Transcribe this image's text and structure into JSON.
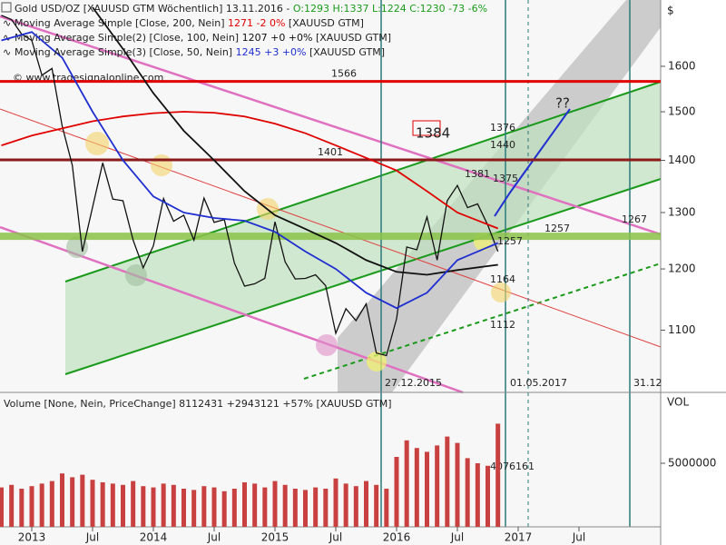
{
  "chart_data": [
    {
      "type": "line",
      "title": "Gold USD/OZ [XAUUSD GTM Wöchentlich] 13.11.2016 -",
      "ohlc": "O:1293 H:1337 L:1224 C:1230 -73 -6%",
      "watermark": "© www.tradesignalonline.com",
      "axis_unit": "$",
      "log_scale": true,
      "ylim": [
        1007,
        1758
      ],
      "yticks": [
        1100,
        1200,
        1300,
        1400,
        1500,
        1600
      ],
      "series": [
        {
          "name": "Gold USD/OZ",
          "color": "#111111",
          "x": [
            "2012-10",
            "2012-11",
            "2012-12",
            "2013-01",
            "2013-02",
            "2013-03",
            "2013-04",
            "2013-05",
            "2013-06",
            "2013-07",
            "2013-08",
            "2013-09",
            "2013-10",
            "2013-11",
            "2013-12",
            "2014-01",
            "2014-02",
            "2014-03",
            "2014-04",
            "2014-05",
            "2014-06",
            "2014-07",
            "2014-08",
            "2014-09",
            "2014-10",
            "2014-11",
            "2014-12",
            "2015-01",
            "2015-02",
            "2015-03",
            "2015-04",
            "2015-05",
            "2015-06",
            "2015-07",
            "2015-08",
            "2015-09",
            "2015-10",
            "2015-11",
            "2015-12",
            "2016-01",
            "2016-02",
            "2016-03",
            "2016-04",
            "2016-05",
            "2016-06",
            "2016-07",
            "2016-08",
            "2016-09",
            "2016-10",
            "2016-11"
          ],
          "values": [
            1720,
            1710,
            1675,
            1660,
            1580,
            1595,
            1470,
            1390,
            1230,
            1310,
            1395,
            1325,
            1322,
            1250,
            1202,
            1240,
            1326,
            1284,
            1295,
            1250,
            1327,
            1282,
            1287,
            1210,
            1171,
            1175,
            1184,
            1283,
            1212,
            1183,
            1184,
            1190,
            1172,
            1095,
            1134,
            1115,
            1142,
            1065,
            1061,
            1118,
            1238,
            1233,
            1292,
            1215,
            1322,
            1351,
            1309,
            1316,
            1277,
            1230
          ]
        },
        {
          "name": "Moving Average Simple [Close, 200, Nein]",
          "legend_value": "1271 -2 0%",
          "legend_suffix": "[XAUUSD GTM]",
          "color": "#e00000",
          "x": [
            "2012-10",
            "2013-01",
            "2013-04",
            "2013-07",
            "2013-10",
            "2014-01",
            "2014-04",
            "2014-07",
            "2014-10",
            "2015-01",
            "2015-04",
            "2015-07",
            "2015-10",
            "2016-01",
            "2016-04",
            "2016-07",
            "2016-11"
          ],
          "values": [
            1430,
            1450,
            1465,
            1480,
            1490,
            1497,
            1500,
            1498,
            1490,
            1475,
            1455,
            1430,
            1405,
            1380,
            1340,
            1300,
            1271
          ]
        },
        {
          "name": "Moving Average Simple(2) [Close, 100, Nein]",
          "legend_value": "1207 +0 +0%",
          "legend_suffix": "[XAUUSD GTM]",
          "color": "#111111",
          "x": [
            "2013-07",
            "2013-10",
            "2014-01",
            "2014-04",
            "2014-07",
            "2014-10",
            "2015-01",
            "2015-04",
            "2015-07",
            "2015-10",
            "2016-01",
            "2016-04",
            "2016-07",
            "2016-11"
          ],
          "values": [
            1740,
            1640,
            1540,
            1460,
            1400,
            1340,
            1295,
            1270,
            1245,
            1215,
            1195,
            1190,
            1198,
            1207
          ]
        },
        {
          "name": "Moving Average Simple(3) [Close, 50, Nein]",
          "legend_value": "1245 +3 +0%",
          "legend_suffix": "[XAUUSD GTM]",
          "color": "#1f2fd0",
          "x": [
            "2012-10",
            "2013-01",
            "2013-04",
            "2013-07",
            "2013-10",
            "2014-01",
            "2014-04",
            "2014-07",
            "2014-10",
            "2015-01",
            "2015-04",
            "2015-07",
            "2015-10",
            "2016-01",
            "2016-04",
            "2016-07",
            "2016-11"
          ],
          "values": [
            1660,
            1680,
            1620,
            1500,
            1400,
            1330,
            1300,
            1290,
            1285,
            1265,
            1230,
            1200,
            1160,
            1135,
            1160,
            1215,
            1245
          ]
        }
      ],
      "levels": [
        {
          "value": 1566,
          "color": "#e00000"
        },
        {
          "value": 1401,
          "color": "#8b1a1a"
        },
        {
          "value": 1257,
          "color": "#8bc34a"
        }
      ],
      "annotations": [
        {
          "text": "1384",
          "color": "#111111"
        },
        {
          "text": "1440",
          "color": "#2a9a2a"
        },
        {
          "text": "1376",
          "color": "#aaaaaa"
        },
        {
          "text": "1381",
          "color": "#e06060"
        },
        {
          "text": "1375",
          "color": "#e00000"
        },
        {
          "text": "1257",
          "color": "#2a9a2a"
        },
        {
          "text": "1164",
          "color": "#e00000"
        },
        {
          "text": "1112",
          "color": "#2a9a2a"
        },
        {
          "text": "1267",
          "color": "#e080c0"
        },
        {
          "text": "??",
          "color": "#1f2fd0"
        },
        {
          "text": "27.12.2015",
          "color": "#2a7a7a"
        },
        {
          "text": "01.05.2017",
          "color": "#2a7a7a"
        },
        {
          "text": "31.12",
          "color": "#2a7a7a"
        }
      ]
    },
    {
      "type": "bar",
      "title": "Volume [None, Nein, PriceChange] 8112431 +2943121 +57% [XAUUSD GTM]",
      "axis_unit": "VOL",
      "color": "#c84040",
      "trend_label": "4076161",
      "ylim": [
        0,
        10000000
      ],
      "yticks": [
        5000000
      ],
      "x": [
        "2012-10",
        "2012-11",
        "2012-12",
        "2013-01",
        "2013-02",
        "2013-03",
        "2013-04",
        "2013-05",
        "2013-06",
        "2013-07",
        "2013-08",
        "2013-09",
        "2013-10",
        "2013-11",
        "2013-12",
        "2014-01",
        "2014-02",
        "2014-03",
        "2014-04",
        "2014-05",
        "2014-06",
        "2014-07",
        "2014-08",
        "2014-09",
        "2014-10",
        "2014-11",
        "2014-12",
        "2015-01",
        "2015-02",
        "2015-03",
        "2015-04",
        "2015-05",
        "2015-06",
        "2015-07",
        "2015-08",
        "2015-09",
        "2015-10",
        "2015-11",
        "2015-12",
        "2016-01",
        "2016-02",
        "2016-03",
        "2016-04",
        "2016-05",
        "2016-06",
        "2016-07",
        "2016-08",
        "2016-09",
        "2016-10",
        "2016-11"
      ],
      "values": [
        3100000,
        3300000,
        3000000,
        3200000,
        3400000,
        3600000,
        4200000,
        3900000,
        4100000,
        3700000,
        3500000,
        3400000,
        3300000,
        3600000,
        3200000,
        3100000,
        3400000,
        3300000,
        3000000,
        2900000,
        3200000,
        3100000,
        2800000,
        3000000,
        3500000,
        3400000,
        3100000,
        3600000,
        3300000,
        3000000,
        2900000,
        3100000,
        3000000,
        3800000,
        3400000,
        3200000,
        3600000,
        3300000,
        3000000,
        5500000,
        6800000,
        6200000,
        5900000,
        6400000,
        7100000,
        6600000,
        5400000,
        5000000,
        4800000,
        8112431
      ],
      "xticks": [
        {
          "value": "2013-01",
          "label": "2013"
        },
        {
          "value": "2013-07",
          "label": "Jul"
        },
        {
          "value": "2014-01",
          "label": "2014"
        },
        {
          "value": "2014-07",
          "label": "Jul"
        },
        {
          "value": "2015-01",
          "label": "2015"
        },
        {
          "value": "2015-07",
          "label": "Jul"
        },
        {
          "value": "2016-01",
          "label": "2016"
        },
        {
          "value": "2016-07",
          "label": "Jul"
        },
        {
          "value": "2017-01",
          "label": "2017"
        },
        {
          "value": "2017-07",
          "label": "Jul"
        }
      ]
    }
  ]
}
